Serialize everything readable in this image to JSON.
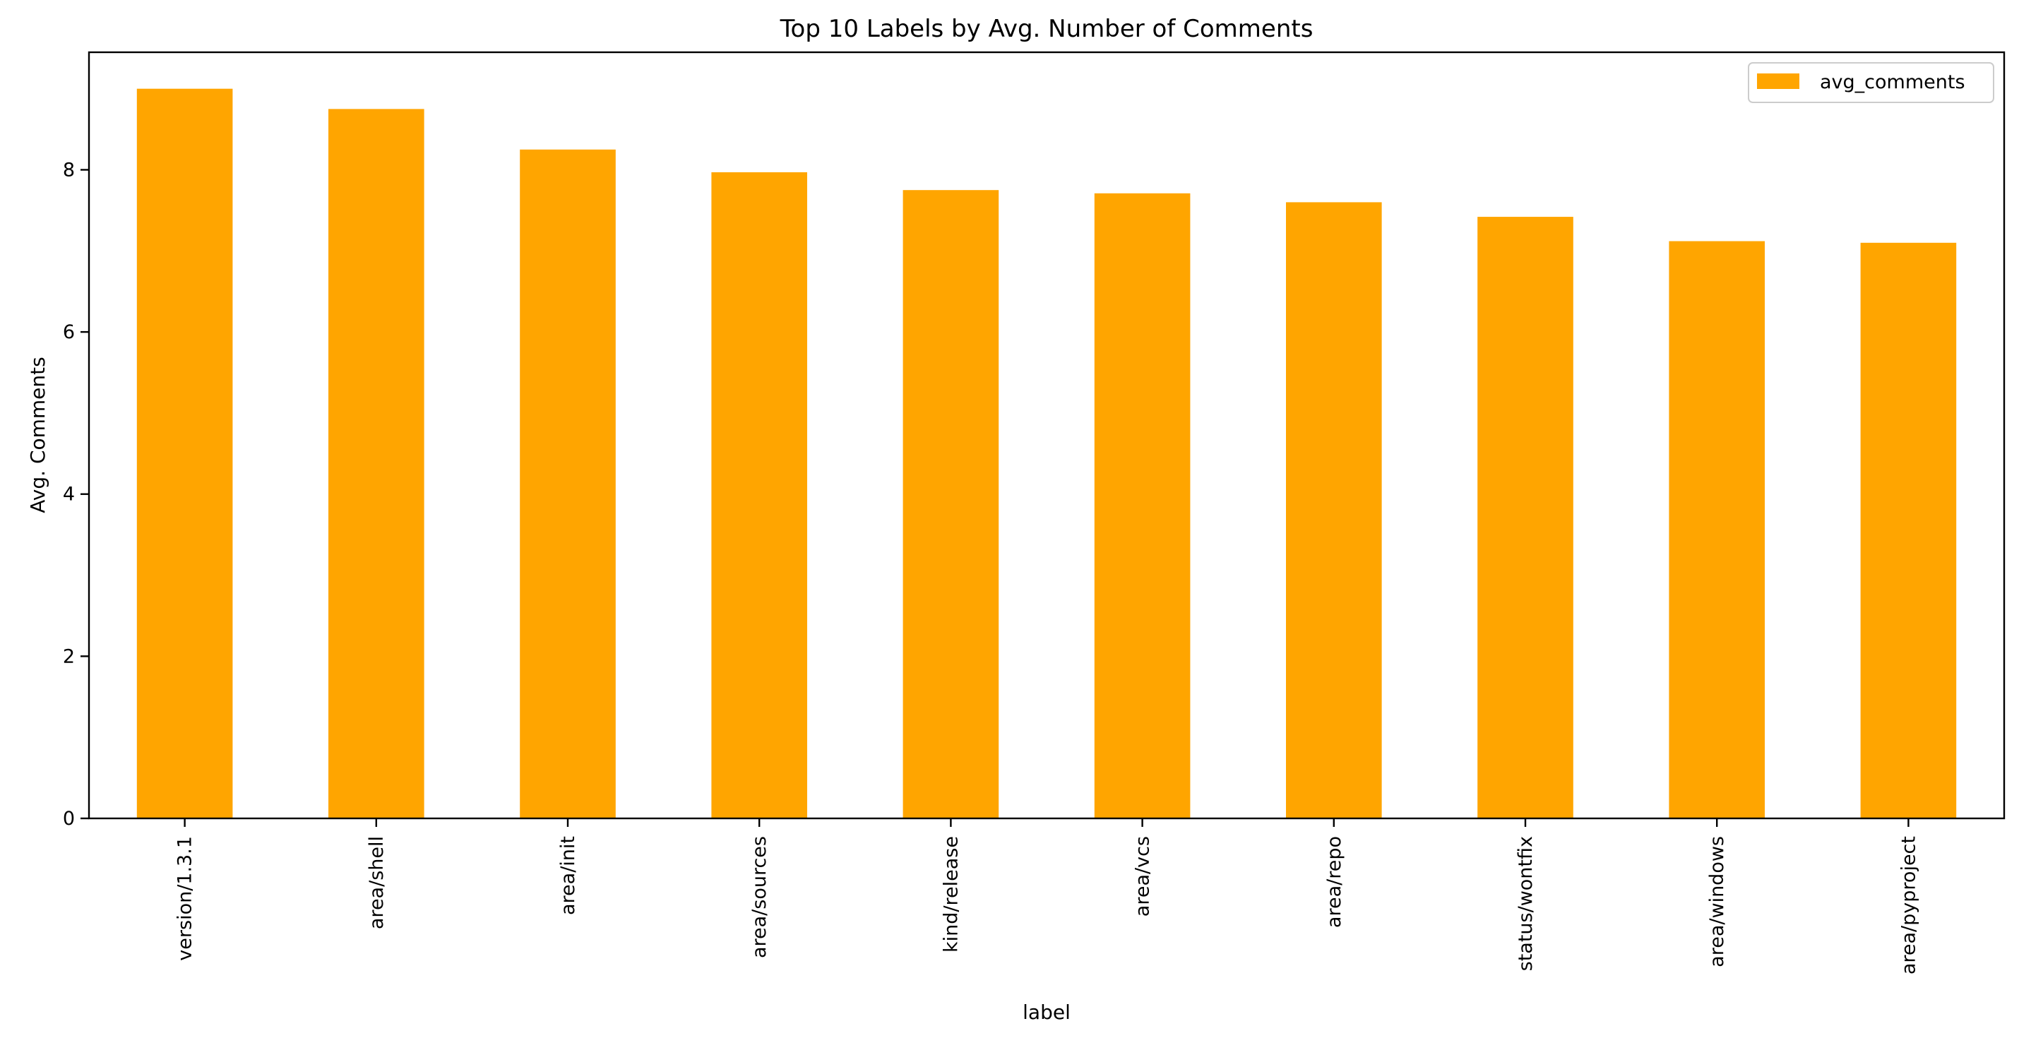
{
  "chart_data": {
    "type": "bar",
    "title": "Top 10 Labels by Avg. Number of Comments",
    "xlabel": "label",
    "ylabel": "Avg. Comments",
    "categories": [
      "version/1.3.1",
      "area/shell",
      "area/init",
      "area/sources",
      "kind/release",
      "area/vcs",
      "area/repo",
      "status/wontfix",
      "area/windows",
      "area/pyproject"
    ],
    "series": [
      {
        "name": "avg_comments",
        "color": "#FFA500",
        "values": [
          9.0,
          8.75,
          8.25,
          7.97,
          7.75,
          7.71,
          7.6,
          7.42,
          7.12,
          7.1
        ]
      }
    ],
    "ylim": [
      0,
      9.45
    ],
    "yticks": [
      0,
      2,
      4,
      6,
      8
    ],
    "ytick_labels": [
      "0",
      "2",
      "4",
      "6",
      "8"
    ],
    "grid": false,
    "legend_position": "top-right",
    "x_tick_rotation": "vertical"
  }
}
